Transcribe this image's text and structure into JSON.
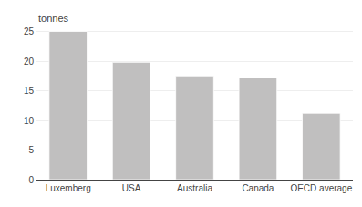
{
  "chart_data": {
    "type": "bar",
    "ylabel": "tonnes",
    "categories": [
      "Luxemberg",
      "USA",
      "Australia",
      "Canada",
      "OECD average"
    ],
    "values": [
      25.0,
      19.8,
      17.5,
      17.2,
      11.2
    ],
    "color": "#c0bfbf",
    "ylim": [
      0,
      26
    ],
    "yticks": [
      0,
      5,
      10,
      15,
      20,
      25
    ],
    "grid": true
  }
}
